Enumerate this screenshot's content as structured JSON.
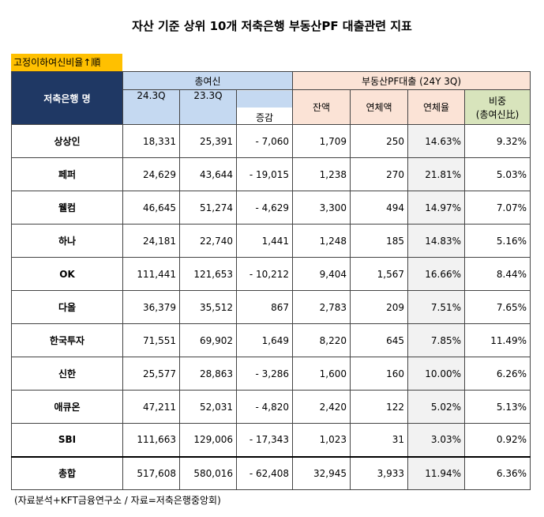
{
  "header": {
    "title": "자산 기준 상위 10개 저축은행 부동산PF 대출관련 지표",
    "tag": "고정이하여신비율↑順"
  },
  "table": {
    "name_header": "저축은행 명",
    "group1": "총여신",
    "group2": "부동산PF대출 (24Y 3Q)",
    "columns": [
      "24.3Q",
      "23.3Q",
      "증감",
      "잔액",
      "연체액",
      "연체율"
    ],
    "share_header": [
      "비중",
      "(총여신比)"
    ],
    "rows": [
      [
        "상상인",
        "18,331",
        "25,391",
        "- 7,060",
        "1,709",
        "250",
        "14.63%",
        "9.32%"
      ],
      [
        "페퍼",
        "24,629",
        "43,644",
        "- 19,015",
        "1,238",
        "270",
        "21.81%",
        "5.03%"
      ],
      [
        "웰컴",
        "46,645",
        "51,274",
        "- 4,629",
        "3,300",
        "494",
        "14.97%",
        "7.07%"
      ],
      [
        "하나",
        "24,181",
        "22,740",
        "1,441",
        "1,248",
        "185",
        "14.83%",
        "5.16%"
      ],
      [
        "OK",
        "111,441",
        "121,653",
        "- 10,212",
        "9,404",
        "1,567",
        "16.66%",
        "8.44%"
      ],
      [
        "다올",
        "36,379",
        "35,512",
        "867",
        "2,783",
        "209",
        "7.51%",
        "7.65%"
      ],
      [
        "한국투자",
        "71,551",
        "69,902",
        "1,649",
        "8,220",
        "645",
        "7.85%",
        "11.49%"
      ],
      [
        "신한",
        "25,577",
        "28,863",
        "- 3,286",
        "1,600",
        "160",
        "10.00%",
        "6.26%"
      ],
      [
        "애큐온",
        "47,211",
        "52,031",
        "- 4,820",
        "2,420",
        "122",
        "5.02%",
        "5.13%"
      ],
      [
        "SBI",
        "111,663",
        "129,006",
        "- 17,343",
        "1,023",
        "31",
        "3.03%",
        "0.92%"
      ],
      [
        "총합",
        "517,608",
        "580,016",
        "- 62,408",
        "32,945",
        "3,933",
        "11.94%",
        "6.36%"
      ]
    ]
  },
  "footer": {
    "source": "(자료분석+KFT금융연구소 / 자료=저축은행중앙회)"
  }
}
